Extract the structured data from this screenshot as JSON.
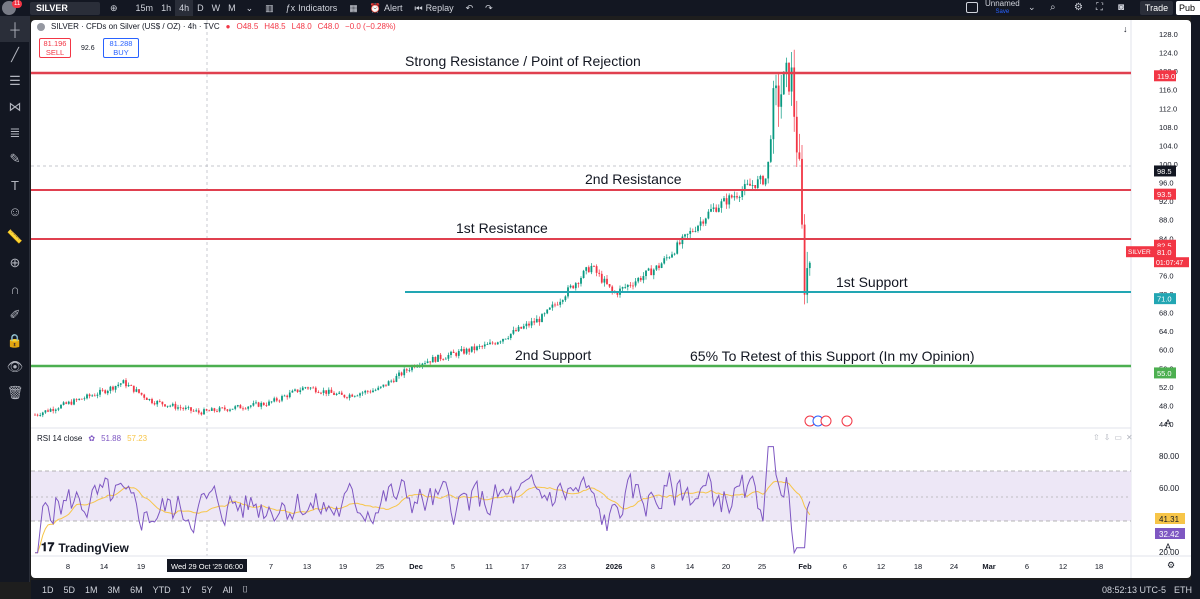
{
  "topbar": {
    "notification_count": "11",
    "symbol": "SILVER",
    "timeframes": [
      "15m",
      "1h",
      "4h",
      "D",
      "W",
      "M"
    ],
    "active_timeframe": "4h",
    "indicators_label": "Indicators",
    "alert_label": "Alert",
    "replay_label": "Replay",
    "layout_name": "Unnamed",
    "layout_status": "Save",
    "trade_label": "Trade",
    "publish_label": "Pub"
  },
  "legend": {
    "title": "SILVER · CFDs on Silver (US$ / OZ) · 4h · TVC",
    "open": "O48.5",
    "high": "H48.5",
    "low": "L48.0",
    "close": "C48.0",
    "change": "−0.0 (−0.28%)",
    "sell_price": "81.196",
    "sell_label": "SELL",
    "spread": "92.6",
    "buy_price": "81.288",
    "buy_label": "BUY"
  },
  "annotations": {
    "strong_resistance": "Strong Resistance / Point of Rejection",
    "second_resistance": "2nd Resistance",
    "first_resistance": "1st Resistance",
    "first_support": "1st Support",
    "second_support": "2nd Support",
    "retest_note": "65% To Retest of this Support (In my Opinion)"
  },
  "price_axis": {
    "ticks": [
      "128.0",
      "124.0",
      "120.0",
      "116.0",
      "112.0",
      "108.0",
      "104.0",
      "100.0",
      "96.0",
      "92.0",
      "88.0",
      "84.0",
      "80.0",
      "76.0",
      "72.0",
      "68.0",
      "64.0",
      "60.0",
      "56.0",
      "52.0",
      "48.0",
      "44.0"
    ],
    "markers": [
      {
        "label": "119.0",
        "color": "#f23645"
      },
      {
        "label": "98.5",
        "color": "#131722"
      },
      {
        "label": "93.5",
        "color": "#f23645"
      },
      {
        "label": "82.5",
        "color": "#f23645"
      },
      {
        "label": "81.0",
        "color": "#f23645"
      },
      {
        "label": "71.0",
        "color": "#22a6b3"
      },
      {
        "label": "55.0",
        "color": "#4caf50"
      }
    ],
    "current_symbol": "SILVER",
    "current_countdown": "01:07:47"
  },
  "rsi": {
    "title": "RSI 14 close",
    "value": "51.88",
    "ma_value": "57.23",
    "ticks": [
      "80.00",
      "60.00",
      "40.00",
      "20.00"
    ],
    "marker_ma": "41.31",
    "marker_rsi": "32.42"
  },
  "time_axis": {
    "labels": [
      "8",
      "14",
      "19",
      "Wed 29 Oct '25   06:00",
      "7",
      "13",
      "19",
      "25",
      "Dec",
      "5",
      "11",
      "17",
      "23",
      "2026",
      "8",
      "14",
      "20",
      "25",
      "Feb",
      "6",
      "12",
      "18",
      "24",
      "Mar",
      "6",
      "12",
      "18",
      "24"
    ]
  },
  "logo_text": "TradingView",
  "bottombar": {
    "ranges": [
      "1D",
      "5D",
      "1M",
      "3M",
      "6M",
      "YTD",
      "1Y",
      "5Y",
      "All"
    ],
    "clock": "08:52:13 UTC-5",
    "session": "ETH"
  },
  "colors": {
    "resistance": "#e0404f",
    "support_first": "#22a6b3",
    "support_second": "#4caf50",
    "candle_up": "#089981",
    "candle_down": "#f23645",
    "rsi_line": "#7e57c2",
    "rsi_ma": "#f7c548"
  },
  "chart_data": {
    "type": "candlestick",
    "symbol": "SILVER",
    "timeframe": "4h",
    "levels": [
      {
        "name": "Strong Resistance / Point of Rejection",
        "price": 119.0
      },
      {
        "name": "2nd Resistance",
        "price": 93.5
      },
      {
        "name": "1st Resistance",
        "price": 82.5
      },
      {
        "name": "1st Support",
        "price": 71.0
      },
      {
        "name": "2nd Support",
        "price": 55.0
      }
    ],
    "ylim": [
      44,
      128
    ],
    "price_path": [
      {
        "x": "Oct 5",
        "y": 46
      },
      {
        "x": "Oct 14",
        "y": 51
      },
      {
        "x": "Oct 16",
        "y": 53
      },
      {
        "x": "Oct 20",
        "y": 49
      },
      {
        "x": "Oct 28",
        "y": 46.5
      },
      {
        "x": "Nov 7",
        "y": 48.5
      },
      {
        "x": "Nov 13",
        "y": 52
      },
      {
        "x": "Nov 19",
        "y": 50
      },
      {
        "x": "Nov 25",
        "y": 51.5
      },
      {
        "x": "Dec 1",
        "y": 57
      },
      {
        "x": "Dec 11",
        "y": 61
      },
      {
        "x": "Dec 19",
        "y": 67
      },
      {
        "x": "Dec 26",
        "y": 78
      },
      {
        "x": "Dec 29",
        "y": 72
      },
      {
        "x": "Jan 5",
        "y": 78
      },
      {
        "x": "Jan 14",
        "y": 90
      },
      {
        "x": "Jan 20",
        "y": 95
      },
      {
        "x": "Jan 23",
        "y": 97
      },
      {
        "x": "Jan 26",
        "y": 112
      },
      {
        "x": "Jan 29",
        "y": 120
      },
      {
        "x": "Jan 30",
        "y": 96
      },
      {
        "x": "Jan 31",
        "y": 74
      },
      {
        "x": "Feb 1",
        "y": 81
      }
    ],
    "rsi_ylim": [
      20,
      90
    ],
    "rsi_last": 51.88,
    "rsi_ma_last": 57.23
  }
}
